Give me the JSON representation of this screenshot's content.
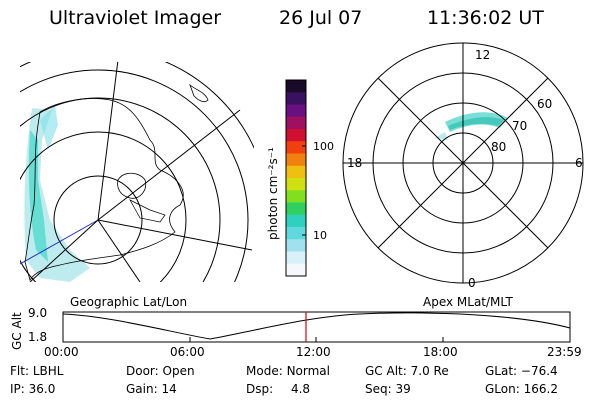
{
  "header": {
    "instrument": "Ultraviolet Imager",
    "date": "26 Jul 07",
    "time": "11:36:02 UT"
  },
  "left_panel": {
    "caption": "Geographic Lat/Lon"
  },
  "right_panel": {
    "caption": "Apex MLat/MLT",
    "mlt_labels": {
      "top": "12",
      "left": "18",
      "right": "6",
      "bottom": "0"
    },
    "mlat_labels": [
      "60",
      "70",
      "80"
    ]
  },
  "colorbar": {
    "units_label": "photon cm⁻²s⁻¹",
    "scale": "log",
    "tick_labels": [
      "100",
      "10"
    ],
    "colors": [
      "#1a0a2a",
      "#3a1060",
      "#6a1080",
      "#a01060",
      "#d01030",
      "#f04010",
      "#f08010",
      "#f0c010",
      "#d0e010",
      "#80e020",
      "#30d060",
      "#30d0c0",
      "#60d8e0",
      "#a0e0f0",
      "#d8f0f8",
      "#f4f8fb"
    ]
  },
  "altitude_plot": {
    "ylabel": "GC Alt",
    "y_ticks": [
      "9.0",
      "1.8"
    ],
    "x_ticks": [
      "00:00",
      "06:00",
      "12:00",
      "18:00",
      "23:59"
    ],
    "current_time_color": "#e00000"
  },
  "info": {
    "flt_label": "Flt:",
    "flt_value": "LBHL",
    "ip_label": "IP:",
    "ip_value": "36.0",
    "door_label": "Door:",
    "door_value": "Open",
    "gain_label": "Gain:",
    "gain_value": "14",
    "mode_label": "Mode:",
    "mode_value": "Normal",
    "dsp_label": "Dsp:",
    "dsp_value": "4.8",
    "gcalt_label": "GC Alt:",
    "gcalt_value": "7.0 Re",
    "seq_label": "Seq:",
    "seq_value": "39",
    "glat_label": "GLat:",
    "glat_value": "−76.4",
    "glon_label": "GLon:",
    "glon_value": "166.2"
  }
}
